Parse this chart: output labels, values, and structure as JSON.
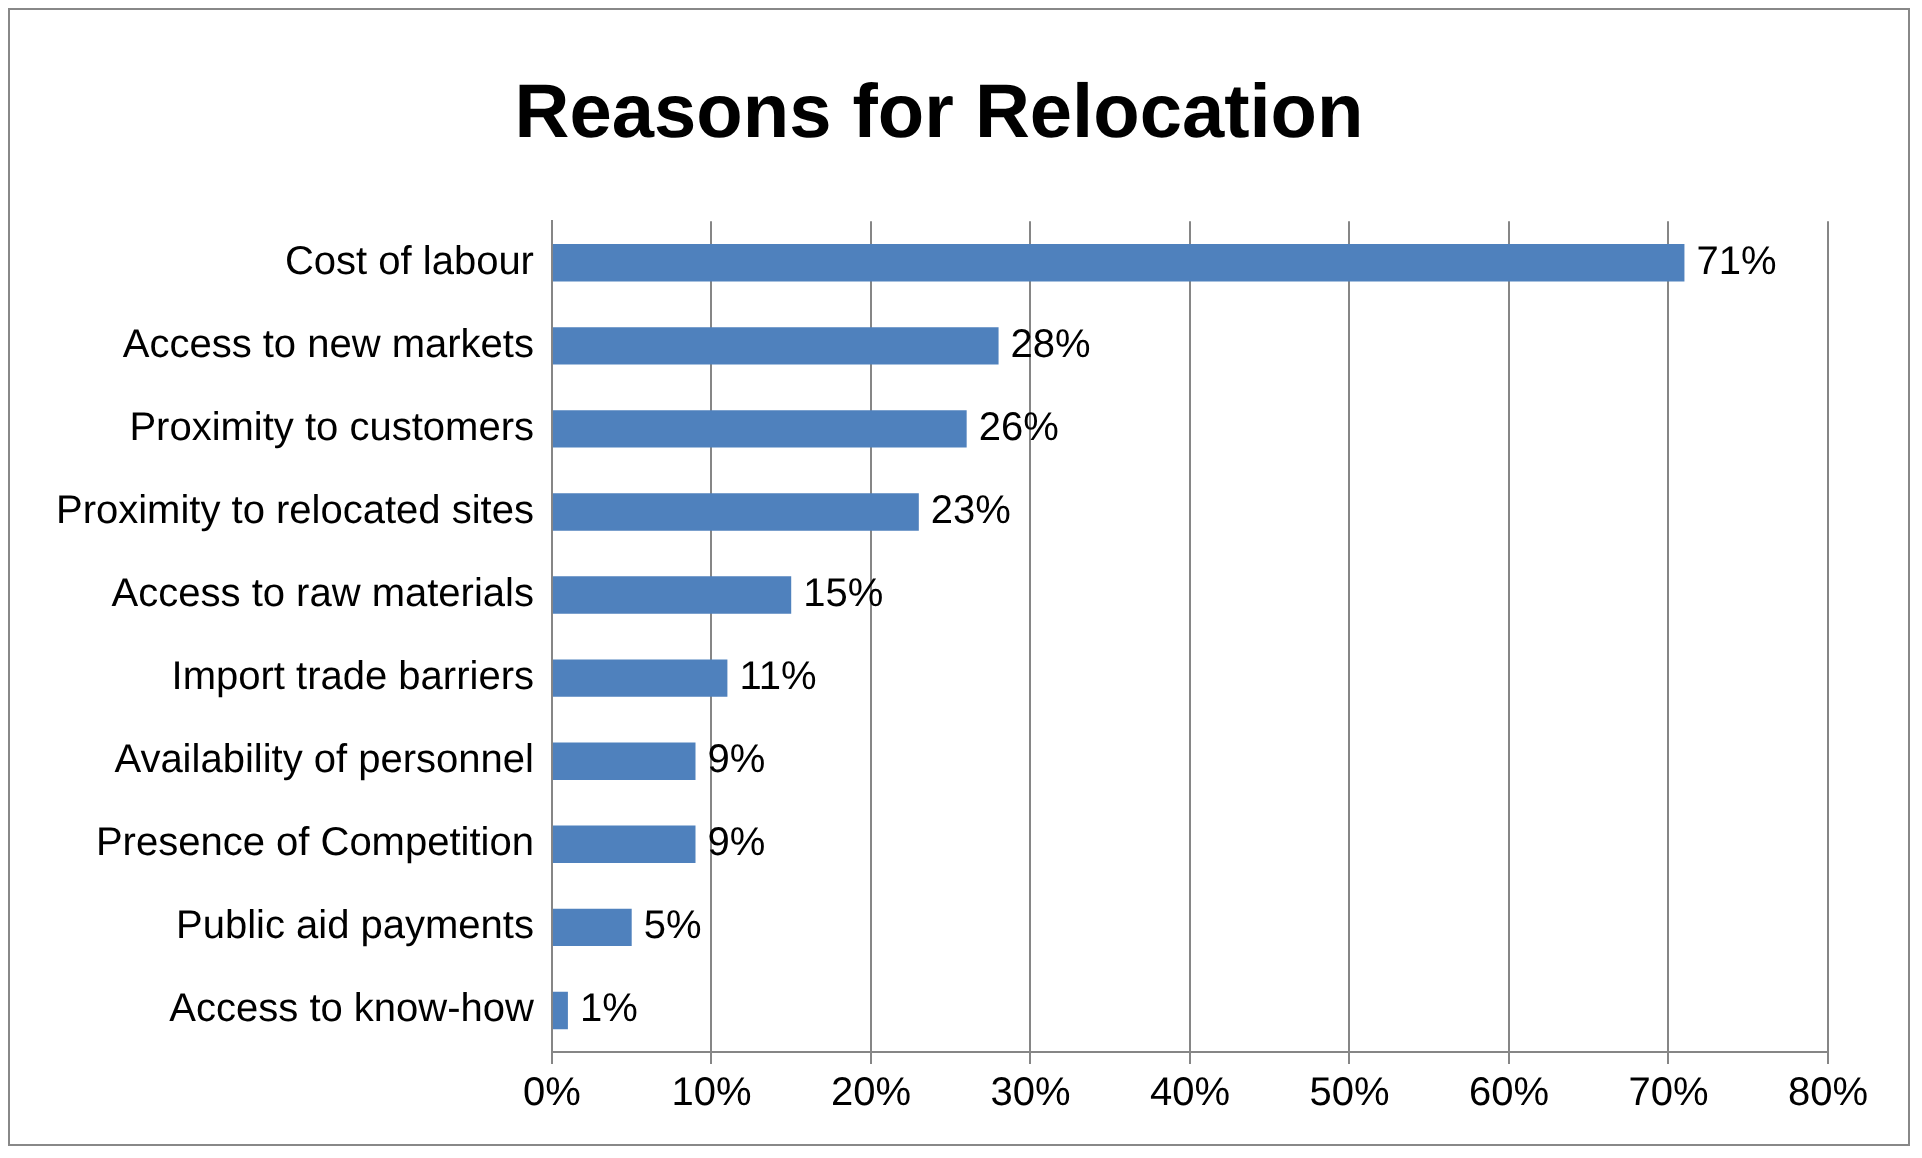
{
  "chart_data": {
    "type": "bar",
    "orientation": "horizontal",
    "title": "Reasons for Relocation",
    "categories": [
      "Cost of labour",
      "Access to new markets",
      "Proximity to customers",
      "Proximity to relocated sites",
      "Access to raw materials",
      "Import trade barriers",
      "Availability of personnel",
      "Presence of Competition",
      "Public aid payments",
      "Access to know-how"
    ],
    "values": [
      71,
      28,
      26,
      23,
      15,
      11,
      9,
      9,
      5,
      1
    ],
    "value_labels": [
      "71%",
      "28%",
      "26%",
      "23%",
      "15%",
      "11%",
      "9%",
      "9%",
      "5%",
      "1%"
    ],
    "color": "#4f81bd",
    "xlim": [
      0,
      80
    ],
    "xticks": [
      {
        "value": 0,
        "label": "0%"
      },
      {
        "value": 10,
        "label": "10%"
      },
      {
        "value": 20,
        "label": "20%"
      },
      {
        "value": 30,
        "label": "30%"
      },
      {
        "value": 40,
        "label": "40%"
      },
      {
        "value": 50,
        "label": "50%"
      },
      {
        "value": 60,
        "label": "60%"
      },
      {
        "value": 70,
        "label": "70%"
      },
      {
        "value": 80,
        "label": "80%"
      }
    ],
    "grid": "x",
    "legend": false
  }
}
